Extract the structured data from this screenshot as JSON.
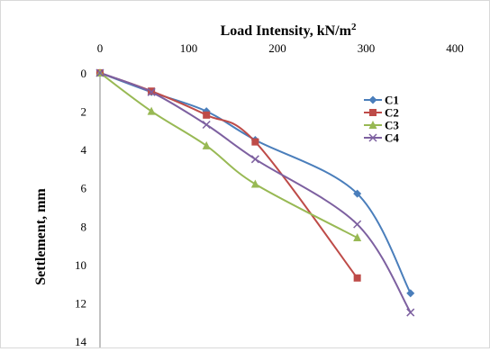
{
  "chart_data": {
    "type": "line",
    "title": "",
    "xlabel": "Load Intensity, kN/m",
    "xlabel_superscript": "2",
    "ylabel": "Settlement, mm",
    "xlim": [
      0,
      400
    ],
    "ylim": [
      0,
      14
    ],
    "x_ticks": [
      0,
      100,
      200,
      300,
      400
    ],
    "y_ticks": [
      0,
      2,
      4,
      6,
      8,
      10,
      12,
      14
    ],
    "x_axis_position": "top",
    "y_axis_inverted": true,
    "grid": false,
    "smoothed": true,
    "legend_position": "right",
    "series": [
      {
        "name": "C1",
        "color": "#4a7ebb",
        "marker": "diamond",
        "x": [
          0,
          58,
          120,
          175,
          290,
          350
        ],
        "y": [
          0,
          1.0,
          2.0,
          3.5,
          6.3,
          11.5
        ]
      },
      {
        "name": "C2",
        "color": "#be4b48",
        "marker": "square",
        "x": [
          0,
          58,
          120,
          175,
          290
        ],
        "y": [
          0,
          0.95,
          2.2,
          3.6,
          10.7
        ]
      },
      {
        "name": "C3",
        "color": "#98b954",
        "marker": "triangle",
        "x": [
          0,
          58,
          120,
          175,
          290
        ],
        "y": [
          0,
          2.0,
          3.8,
          5.8,
          8.6
        ]
      },
      {
        "name": "C4",
        "color": "#7d60a0",
        "marker": "x",
        "x": [
          0,
          58,
          120,
          175,
          290,
          350
        ],
        "y": [
          0,
          1.0,
          2.7,
          4.5,
          7.9,
          12.5
        ]
      }
    ]
  }
}
